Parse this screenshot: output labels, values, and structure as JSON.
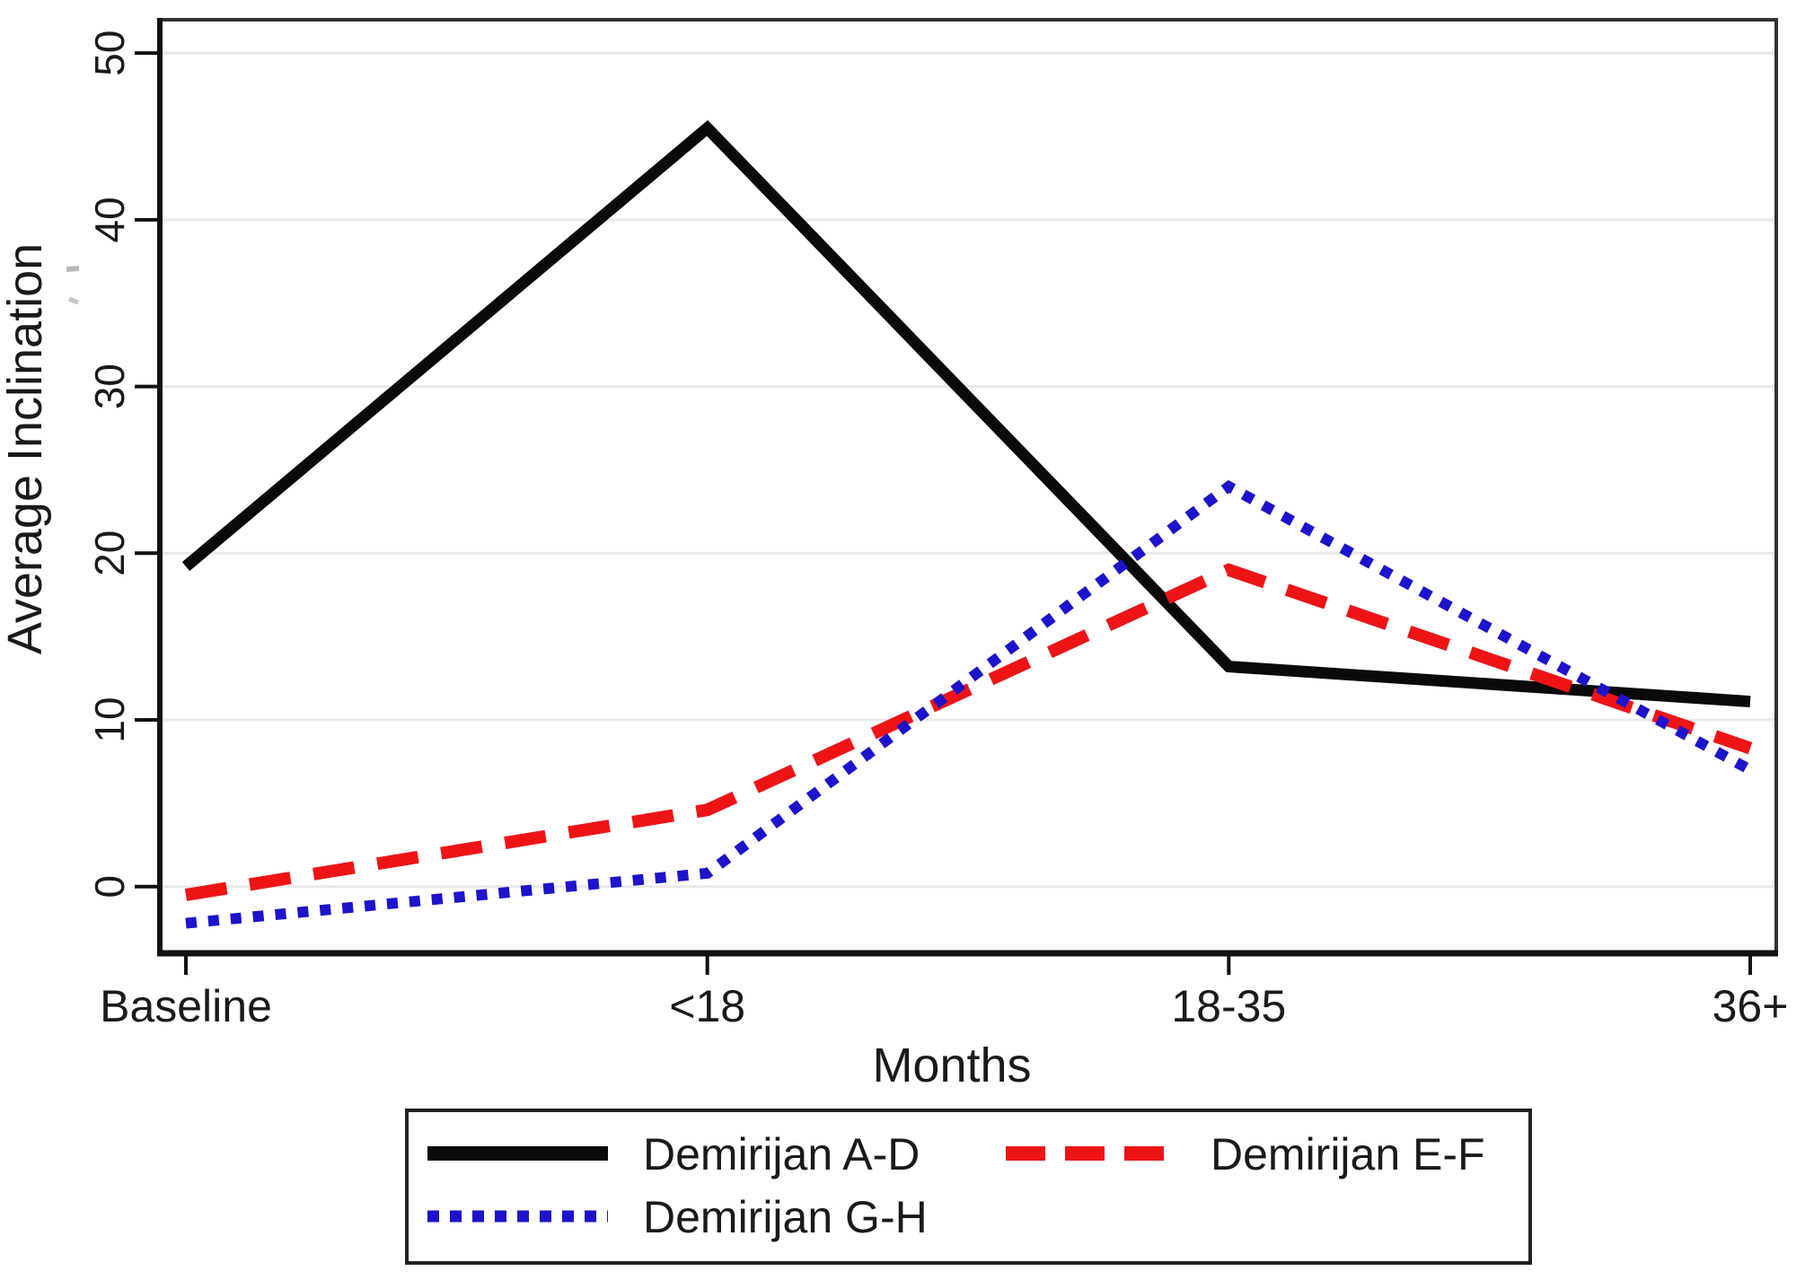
{
  "chart_data": {
    "type": "line",
    "title": "",
    "xlabel": "Months",
    "ylabel": "Average Inclination",
    "categories": [
      "Baseline",
      "<18",
      "18-35",
      "36+"
    ],
    "series": [
      {
        "name": "Demirijan A-D",
        "values": [
          19.2,
          45.5,
          13.2,
          11.1
        ],
        "color": "#0a0a0a",
        "style": "solid"
      },
      {
        "name": "Demirijan E-F",
        "values": [
          -0.5,
          4.6,
          19.0,
          8.3
        ],
        "color": "#ee1416",
        "style": "dashed"
      },
      {
        "name": "Demirijan G-H",
        "values": [
          -2.2,
          0.8,
          24.0,
          7.0
        ],
        "color": "#1c13cb",
        "style": "dotted"
      }
    ],
    "yticks": [
      0,
      10,
      20,
      30,
      40,
      50
    ],
    "ylim": [
      -4,
      52
    ],
    "grid": true,
    "legend_position": "bottom",
    "colors": {
      "gridline": "#e9e9e9",
      "frame": "#333333",
      "axis": "#111111",
      "text": "#1a1a1a"
    }
  }
}
